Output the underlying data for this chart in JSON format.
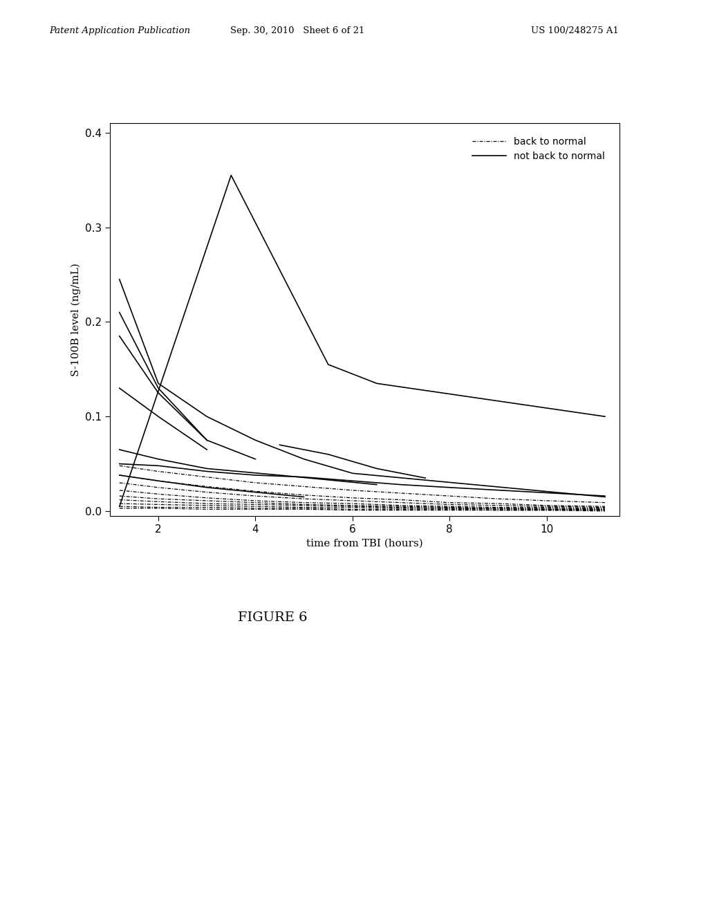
{
  "title": "",
  "xlabel": "time from TBI (hours)",
  "ylabel": "S-100B level (ng/mL)",
  "xlim": [
    1,
    11.5
  ],
  "ylim": [
    -0.005,
    0.41
  ],
  "xticks": [
    2,
    4,
    6,
    8,
    10
  ],
  "yticks": [
    0.0,
    0.1,
    0.2,
    0.3,
    0.4
  ],
  "figure_caption": "FIGURE 6",
  "header_left": "Patent Application Publication",
  "header_center": "Sep. 30, 2010   Sheet 6 of 21",
  "header_right": "US 100/248275 A1",
  "not_back_to_normal_lines": [
    {
      "x": [
        1.2,
        3.5,
        5.5,
        6.5,
        11.2
      ],
      "y": [
        0.005,
        0.355,
        0.155,
        0.135,
        0.1
      ]
    },
    {
      "x": [
        1.2,
        2.0,
        3.0,
        4.0,
        5.0,
        6.0,
        11.2
      ],
      "y": [
        0.245,
        0.135,
        0.1,
        0.075,
        0.055,
        0.04,
        0.015
      ]
    },
    {
      "x": [
        1.2,
        2.0,
        3.0
      ],
      "y": [
        0.21,
        0.13,
        0.075
      ]
    },
    {
      "x": [
        1.2,
        2.0,
        3.0,
        4.0
      ],
      "y": [
        0.185,
        0.125,
        0.075,
        0.055
      ]
    },
    {
      "x": [
        1.2,
        2.0,
        3.0
      ],
      "y": [
        0.13,
        0.1,
        0.065
      ]
    },
    {
      "x": [
        1.2,
        2.0,
        3.0,
        4.0,
        5.0,
        6.0,
        7.0,
        8.0,
        11.2
      ],
      "y": [
        0.05,
        0.048,
        0.042,
        0.038,
        0.036,
        0.032,
        0.028,
        0.025,
        0.016
      ]
    },
    {
      "x": [
        1.2,
        2.0,
        3.0,
        4.5,
        6.5
      ],
      "y": [
        0.065,
        0.055,
        0.045,
        0.038,
        0.028
      ]
    },
    {
      "x": [
        4.5,
        5.5,
        6.5,
        7.5
      ],
      "y": [
        0.07,
        0.06,
        0.045,
        0.035
      ]
    },
    {
      "x": [
        1.2,
        2.0,
        3.0,
        4.0,
        5.0
      ],
      "y": [
        0.038,
        0.032,
        0.025,
        0.02,
        0.015
      ]
    }
  ],
  "back_to_normal_lines": [
    {
      "x": [
        1.2,
        2.0,
        3.0,
        4.0,
        5.0,
        6.0,
        7.0,
        8.0,
        9.0,
        10.0,
        11.2
      ],
      "y": [
        0.048,
        0.042,
        0.036,
        0.03,
        0.026,
        0.022,
        0.019,
        0.016,
        0.013,
        0.011,
        0.009
      ]
    },
    {
      "x": [
        1.2,
        2.0,
        3.0,
        4.0,
        5.0,
        6.0,
        7.0,
        8.0,
        9.0,
        10.0,
        11.2
      ],
      "y": [
        0.038,
        0.032,
        0.026,
        0.021,
        0.017,
        0.014,
        0.012,
        0.009,
        0.008,
        0.006,
        0.005
      ]
    },
    {
      "x": [
        1.2,
        2.0,
        3.0,
        4.0,
        5.0,
        6.0,
        7.0,
        8.0,
        9.0,
        10.0,
        11.2
      ],
      "y": [
        0.03,
        0.025,
        0.02,
        0.016,
        0.013,
        0.011,
        0.009,
        0.007,
        0.006,
        0.005,
        0.004
      ]
    },
    {
      "x": [
        1.2,
        2.0,
        3.0,
        4.0,
        5.0,
        6.0,
        7.0,
        8.0,
        9.0,
        10.0,
        11.2
      ],
      "y": [
        0.022,
        0.018,
        0.014,
        0.011,
        0.009,
        0.008,
        0.006,
        0.005,
        0.004,
        0.004,
        0.003
      ]
    },
    {
      "x": [
        1.2,
        2.0,
        3.0,
        4.0,
        5.0,
        6.0,
        7.0,
        8.0,
        9.0,
        10.0,
        11.2
      ],
      "y": [
        0.016,
        0.013,
        0.011,
        0.009,
        0.007,
        0.006,
        0.005,
        0.004,
        0.003,
        0.003,
        0.002
      ]
    },
    {
      "x": [
        1.2,
        2.0,
        3.0,
        4.0,
        5.0,
        6.0,
        7.0,
        8.0,
        9.0,
        10.0,
        11.2
      ],
      "y": [
        0.012,
        0.01,
        0.008,
        0.007,
        0.006,
        0.005,
        0.004,
        0.003,
        0.003,
        0.002,
        0.002
      ]
    },
    {
      "x": [
        1.2,
        2.0,
        3.0,
        4.0,
        5.0,
        6.0,
        7.0,
        8.0,
        9.0,
        10.0,
        11.2
      ],
      "y": [
        0.008,
        0.007,
        0.006,
        0.005,
        0.004,
        0.004,
        0.003,
        0.003,
        0.002,
        0.002,
        0.001
      ]
    },
    {
      "x": [
        1.2,
        2.0,
        3.0,
        4.0,
        5.0,
        6.0,
        7.0,
        8.0,
        9.0,
        10.0,
        11.2
      ],
      "y": [
        0.005,
        0.004,
        0.004,
        0.003,
        0.003,
        0.002,
        0.002,
        0.002,
        0.001,
        0.001,
        0.001
      ]
    },
    {
      "x": [
        1.2,
        2.0,
        3.0,
        4.0,
        5.0,
        6.0,
        7.0,
        8.0,
        9.0,
        10.0,
        11.2
      ],
      "y": [
        0.003,
        0.003,
        0.002,
        0.002,
        0.002,
        0.001,
        0.001,
        0.001,
        0.001,
        0.001,
        0.0
      ]
    }
  ],
  "line_color": "black",
  "bg_color": "white",
  "solid_linewidth": 1.2,
  "dashed_linewidth": 0.9
}
